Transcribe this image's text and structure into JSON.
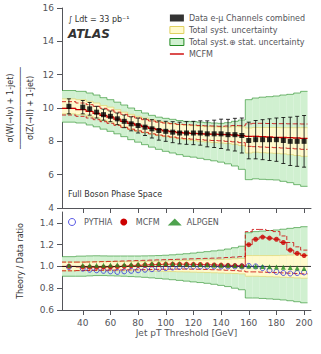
{
  "chart_data": [
    {
      "type": "line",
      "ylabel": "σ(W(→lν) + 1-jet)\n─────────────────\nσ(Z(→ll) + 1-jet)",
      "annotations": [
        "∫ Ldt = 33 pb⁻¹",
        "ATLAS",
        "Full Boson Phase Space"
      ],
      "xlim": [
        25,
        205
      ],
      "xticks": [
        40,
        60,
        80,
        100,
        120,
        140,
        160,
        180,
        200
      ],
      "ylim": [
        4,
        16
      ],
      "yticks": [
        4,
        6,
        8,
        10,
        12,
        14,
        16
      ],
      "tick_labels": "y",
      "grid": false,
      "legend": "upper right",
      "x": [
        30,
        40,
        45,
        50,
        55,
        60,
        65,
        70,
        75,
        80,
        85,
        90,
        95,
        100,
        105,
        110,
        115,
        120,
        125,
        130,
        135,
        140,
        145,
        150,
        155,
        160,
        165,
        170,
        175,
        180,
        185,
        190,
        195,
        200
      ],
      "series": [
        {
          "name": "Data e-μ Channels combined",
          "type": "scatter",
          "marker": "square",
          "color": "#000000",
          "values": [
            10.1,
            10.05,
            9.95,
            9.75,
            9.6,
            9.5,
            9.35,
            9.2,
            9.05,
            8.95,
            8.85,
            8.75,
            8.65,
            8.6,
            8.55,
            8.5,
            8.5,
            8.5,
            8.5,
            8.45,
            8.45,
            8.45,
            8.4,
            8.4,
            8.35,
            8.05,
            8.1,
            8.1,
            8.1,
            8.1,
            8.05,
            8.0,
            8.0,
            8.0
          ],
          "errors": [
            0.45,
            0.4,
            0.38,
            0.35,
            0.33,
            0.32,
            0.35,
            0.38,
            0.42,
            0.45,
            0.5,
            0.55,
            0.58,
            0.6,
            0.63,
            0.65,
            0.68,
            0.7,
            0.73,
            0.78,
            0.82,
            0.88,
            0.92,
            0.98,
            1.05,
            1.1,
            1.15,
            1.2,
            1.25,
            1.3,
            1.38,
            1.45,
            1.5,
            1.55
          ]
        },
        {
          "name": "Total syst. uncertainty",
          "type": "band",
          "color": "#fffacd",
          "edge_color": "#e0d060",
          "lo": [
            9.65,
            9.6,
            9.5,
            9.4,
            9.25,
            9.15,
            9.0,
            8.85,
            8.72,
            8.6,
            8.52,
            8.44,
            8.35,
            8.28,
            8.22,
            8.15,
            8.1,
            8.05,
            8.0,
            7.97,
            7.93,
            7.9,
            7.87,
            7.82,
            7.75,
            7.3,
            7.35,
            7.32,
            7.3,
            7.28,
            7.25,
            7.2,
            7.15,
            7.1
          ],
          "hi": [
            10.55,
            10.5,
            10.4,
            10.3,
            10.15,
            10.05,
            9.9,
            9.75,
            9.62,
            9.5,
            9.4,
            9.3,
            9.2,
            9.12,
            9.06,
            9.0,
            8.97,
            8.94,
            8.9,
            8.88,
            8.87,
            8.85,
            8.85,
            8.88,
            8.87,
            8.8,
            8.83,
            8.83,
            8.83,
            8.83,
            8.82,
            8.82,
            8.82,
            8.82
          ]
        },
        {
          "name": "Total syst.⊕ stat. uncertainty",
          "type": "band",
          "color": "#d0f0d0",
          "edge_color": "#228B22",
          "lo": [
            9.15,
            9.1,
            8.98,
            8.87,
            8.73,
            8.6,
            8.45,
            8.28,
            8.1,
            7.95,
            7.8,
            7.65,
            7.52,
            7.4,
            7.3,
            7.2,
            7.1,
            7.05,
            6.98,
            6.9,
            6.83,
            6.75,
            6.65,
            6.52,
            6.32,
            5.7,
            5.75,
            5.72,
            5.7,
            5.68,
            5.6,
            5.52,
            5.4,
            5.3
          ],
          "hi": [
            11.05,
            11.0,
            10.9,
            10.78,
            10.62,
            10.5,
            10.35,
            10.18,
            10.0,
            9.85,
            9.7,
            9.56,
            9.45,
            9.38,
            9.32,
            9.25,
            9.2,
            9.18,
            9.15,
            9.12,
            9.1,
            9.08,
            9.12,
            9.2,
            9.28,
            10.5,
            10.6,
            10.65,
            10.68,
            10.72,
            10.78,
            10.82,
            10.9,
            11.0
          ]
        },
        {
          "name": "MCFM",
          "type": "step",
          "color": "#cc0000",
          "values": [
            9.98,
            9.9,
            9.8,
            9.68,
            9.56,
            9.46,
            9.33,
            9.2,
            9.08,
            8.98,
            8.88,
            8.78,
            8.7,
            8.63,
            8.58,
            8.53,
            8.5,
            8.48,
            8.46,
            8.44,
            8.43,
            8.42,
            8.4,
            8.38,
            8.34,
            8.3,
            8.3,
            8.28,
            8.26,
            8.24,
            8.23,
            8.22,
            8.2,
            8.18
          ],
          "lo": [
            9.58,
            9.5,
            9.4,
            9.3,
            9.18,
            9.08,
            8.96,
            8.84,
            8.73,
            8.63,
            8.54,
            8.45,
            8.38,
            8.32,
            8.26,
            8.2,
            8.16,
            8.13,
            8.1,
            8.07,
            8.05,
            8.03,
            8.0,
            7.97,
            7.92,
            7.7,
            7.68,
            7.66,
            7.64,
            7.62,
            7.6,
            7.58,
            7.55,
            7.52
          ],
          "hi": [
            10.38,
            10.3,
            10.2,
            10.1,
            9.98,
            9.88,
            9.75,
            9.62,
            9.5,
            9.4,
            9.3,
            9.22,
            9.15,
            9.1,
            9.06,
            9.02,
            9.0,
            8.98,
            8.95,
            8.93,
            8.92,
            8.9,
            8.92,
            8.95,
            8.94,
            9.05,
            9.08,
            9.08,
            9.07,
            9.06,
            9.06,
            9.05,
            9.05,
            9.04
          ]
        }
      ]
    },
    {
      "type": "scatter",
      "xlabel": "Jet pT Threshold [GeV]",
      "ylabel": "Theory / Data ratio",
      "xlim": [
        25,
        205
      ],
      "xticks": [
        40,
        60,
        80,
        100,
        120,
        140,
        160,
        180,
        200
      ],
      "ylim": [
        0.6,
        1.5
      ],
      "yticks": [
        0.6,
        0.8,
        {
          "value": 1.0,
          "label": "1.0"
        },
        1.2,
        1.4
      ],
      "grid": false,
      "legend": "upper left",
      "reference_line": 1.0,
      "x": [
        30,
        40,
        45,
        50,
        55,
        60,
        65,
        70,
        75,
        80,
        85,
        90,
        95,
        100,
        105,
        110,
        115,
        120,
        125,
        130,
        135,
        140,
        145,
        150,
        155,
        160,
        165,
        170,
        175,
        180,
        185,
        190,
        195,
        200
      ],
      "bands": [
        {
          "color": "#fffacd",
          "edge_color": "#e0d060",
          "lo": [
            0.96,
            0.962,
            0.963,
            0.964,
            0.963,
            0.962,
            0.961,
            0.961,
            0.961,
            0.96,
            0.96,
            0.958,
            0.956,
            0.955,
            0.953,
            0.951,
            0.95,
            0.948,
            0.946,
            0.944,
            0.942,
            0.94,
            0.937,
            0.935,
            0.932,
            0.91,
            0.91,
            0.908,
            0.906,
            0.904,
            0.901,
            0.898,
            0.895,
            0.892
          ],
          "hi": [
            1.04,
            1.04,
            1.042,
            1.044,
            1.044,
            1.044,
            1.044,
            1.044,
            1.044,
            1.044,
            1.045,
            1.046,
            1.048,
            1.05,
            1.052,
            1.054,
            1.055,
            1.057,
            1.059,
            1.06,
            1.062,
            1.064,
            1.067,
            1.07,
            1.073,
            1.1,
            1.1,
            1.1,
            1.1,
            1.1,
            1.102,
            1.104,
            1.107,
            1.11
          ]
        },
        {
          "color": "#d0f0d0",
          "edge_color": "#228B22",
          "lo": [
            0.91,
            0.91,
            0.913,
            0.916,
            0.916,
            0.914,
            0.912,
            0.91,
            0.907,
            0.904,
            0.9,
            0.895,
            0.89,
            0.884,
            0.878,
            0.872,
            0.865,
            0.858,
            0.852,
            0.845,
            0.836,
            0.826,
            0.815,
            0.8,
            0.786,
            0.71,
            0.71,
            0.706,
            0.702,
            0.698,
            0.692,
            0.685,
            0.676,
            0.666
          ],
          "hi": [
            1.09,
            1.095,
            1.097,
            1.098,
            1.097,
            1.096,
            1.096,
            1.096,
            1.096,
            1.096,
            1.097,
            1.098,
            1.1,
            1.103,
            1.107,
            1.112,
            1.117,
            1.123,
            1.13,
            1.136,
            1.143,
            1.15,
            1.16,
            1.172,
            1.186,
            1.31,
            1.32,
            1.325,
            1.33,
            1.335,
            1.342,
            1.35,
            1.357,
            1.365
          ]
        }
      ],
      "lines": [
        {
          "color": "#cc0000",
          "values": [
            1.0,
            0.995,
            0.993,
            0.992,
            0.993,
            0.995,
            0.998,
            1.002,
            1.006,
            1.01,
            1.013,
            1.016,
            1.018,
            1.02,
            1.021,
            1.021,
            1.02,
            1.019,
            1.018,
            1.016,
            1.014,
            1.012,
            1.01,
            1.008,
            1.005,
            1.2,
            1.25,
            1.27,
            1.26,
            1.25,
            1.22,
            1.15,
            1.12,
            1.1
          ],
          "lo": [
            0.96,
            0.962,
            0.963,
            0.964,
            0.965,
            0.966,
            0.967,
            0.968,
            0.969,
            0.97,
            0.971,
            0.972,
            0.973,
            0.974,
            0.975,
            0.976,
            0.976,
            0.975,
            0.974,
            0.972,
            0.97,
            0.968,
            0.965,
            0.962,
            0.958,
            0.95,
            0.95,
            0.948,
            0.946,
            0.944,
            0.941,
            0.938,
            0.935,
            0.932
          ],
          "hi": [
            1.04,
            1.04,
            1.041,
            1.042,
            1.044,
            1.046,
            1.048,
            1.05,
            1.052,
            1.054,
            1.056,
            1.058,
            1.06,
            1.062,
            1.064,
            1.066,
            1.068,
            1.07,
            1.072,
            1.074,
            1.076,
            1.078,
            1.082,
            1.086,
            1.09,
            1.32,
            1.34,
            1.34,
            1.33,
            1.32,
            1.28,
            1.22,
            1.18,
            1.15
          ]
        }
      ],
      "series": [
        {
          "name": "PYTHIA",
          "color": "#3030dd",
          "marker": "open circle",
          "values": [
            0.995,
            0.98,
            0.97,
            0.965,
            0.96,
            0.955,
            0.95,
            0.955,
            0.96,
            0.965,
            0.97,
            0.975,
            0.98,
            0.985,
            0.99,
            0.995,
            1.0,
            1.0,
            1.0,
            1.0,
            1.0,
            1.0,
            1.0,
            1.0,
            1.0,
            1.005,
            1.0,
            0.985,
            0.965,
            0.95,
            0.94,
            0.935,
            0.94,
            0.945
          ]
        },
        {
          "name": "MCFM",
          "color": "#cc0000",
          "marker": "circle",
          "values": [
            1.0,
            0.995,
            0.993,
            0.992,
            0.993,
            0.995,
            0.998,
            1.002,
            1.006,
            1.01,
            1.013,
            1.016,
            1.018,
            1.02,
            1.021,
            1.021,
            1.02,
            1.019,
            1.018,
            1.016,
            1.014,
            1.012,
            1.01,
            1.008,
            1.005,
            1.2,
            1.25,
            1.27,
            1.26,
            1.25,
            1.22,
            1.15,
            1.12,
            1.1
          ]
        },
        {
          "name": "ALPGEN",
          "color": "#228B22",
          "marker": "triangle",
          "values": [
            1.01,
            1.01,
            1.01,
            1.01,
            1.012,
            1.013,
            1.015,
            1.017,
            1.02,
            1.022,
            1.025,
            1.027,
            1.028,
            1.028,
            1.027,
            1.025,
            1.022,
            1.02,
            1.018,
            1.016,
            1.014,
            1.012,
            1.01,
            1.008,
            1.005,
            1.005,
            1.002,
            1.0,
            0.998,
            0.995,
            0.993,
            0.99,
            0.986,
            0.982
          ]
        }
      ]
    }
  ]
}
